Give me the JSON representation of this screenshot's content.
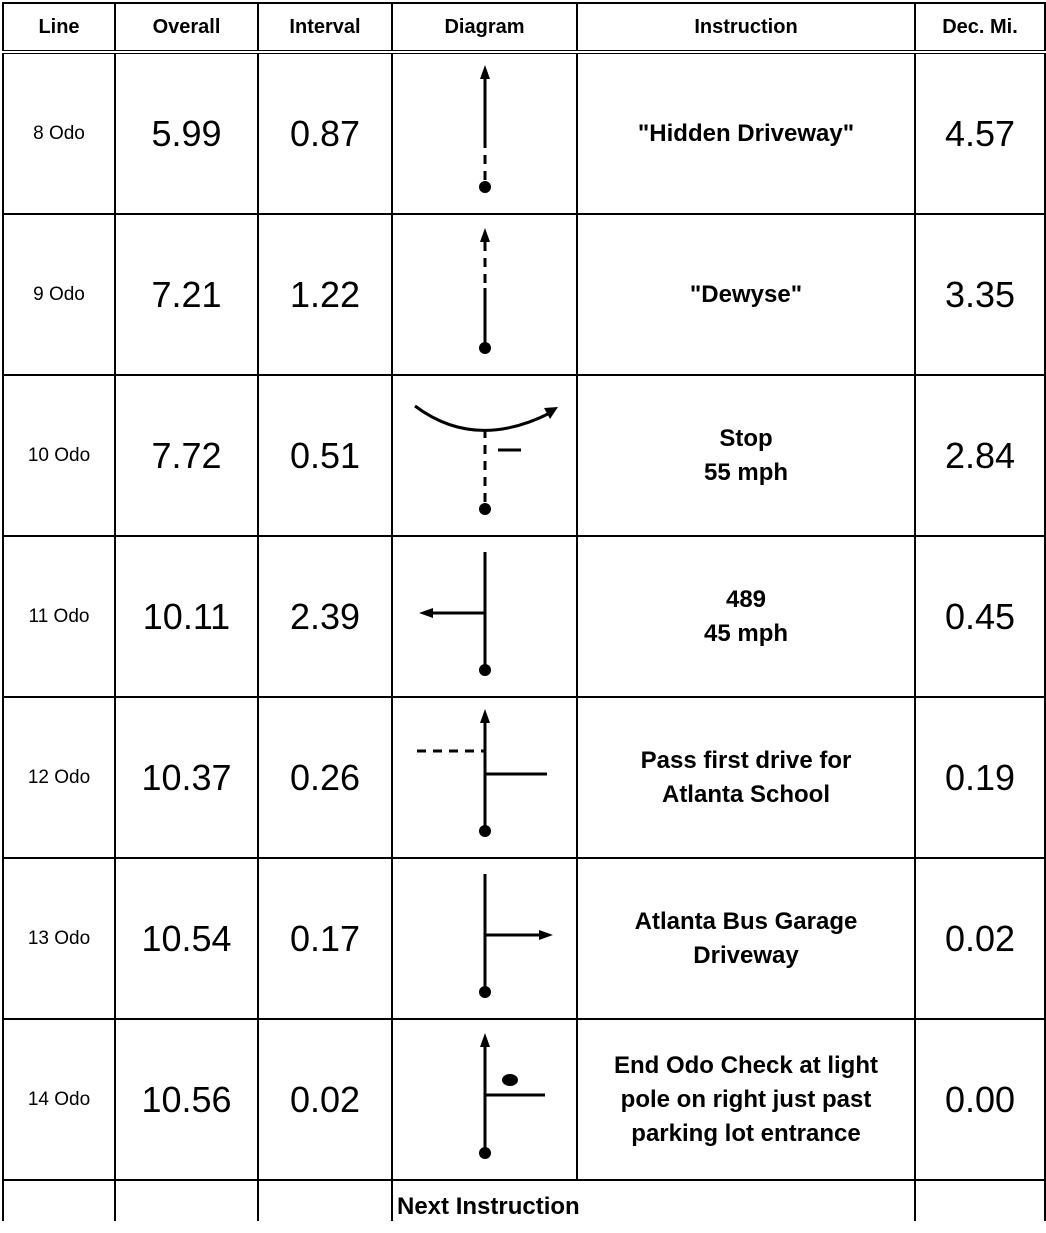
{
  "header": {
    "line": "Line",
    "overall": "Overall",
    "interval": "Interval",
    "diagram": "Diagram",
    "instruction": "Instruction",
    "dec_mi": "Dec. Mi."
  },
  "rows": [
    {
      "line": "8 Odo",
      "overall": "5.99",
      "interval": "0.87",
      "instruction": [
        "\"Hidden Driveway\""
      ],
      "dec": "4.57",
      "diagram_icon": "straight-dashed-bottom-arrow-icon"
    },
    {
      "line": "9 Odo",
      "overall": "7.21",
      "interval": "1.22",
      "instruction": [
        "\"Dewyse\""
      ],
      "dec": "3.35",
      "diagram_icon": "straight-dashed-top-arrow-icon"
    },
    {
      "line": "10 Odo",
      "overall": "7.72",
      "interval": "0.51",
      "instruction": [
        "Stop",
        "55 mph"
      ],
      "dec": "2.84",
      "diagram_icon": "t-intersection-curve-right-icon"
    },
    {
      "line": "11 Odo",
      "overall": "10.11",
      "interval": "2.39",
      "instruction": [
        "489",
        "45 mph"
      ],
      "dec": "0.45",
      "diagram_icon": "turn-left-icon"
    },
    {
      "line": "12 Odo",
      "overall": "10.37",
      "interval": "0.26",
      "instruction": [
        "Pass first drive for",
        "Atlanta School"
      ],
      "dec": "0.19",
      "diagram_icon": "straight-pass-intersection-icon"
    },
    {
      "line": "13 Odo",
      "overall": "10.54",
      "interval": "0.17",
      "instruction": [
        "Atlanta Bus Garage",
        "Driveway"
      ],
      "dec": "0.02",
      "diagram_icon": "turn-right-icon"
    },
    {
      "line": "14 Odo",
      "overall": "10.56",
      "interval": "0.02",
      "instruction": [
        "End Odo Check at light",
        "pole on right just past",
        "parking lot entrance"
      ],
      "dec": "0.00",
      "diagram_icon": "straight-landmark-right-icon"
    }
  ],
  "footer": {
    "next_instruction": "Next Instruction"
  }
}
